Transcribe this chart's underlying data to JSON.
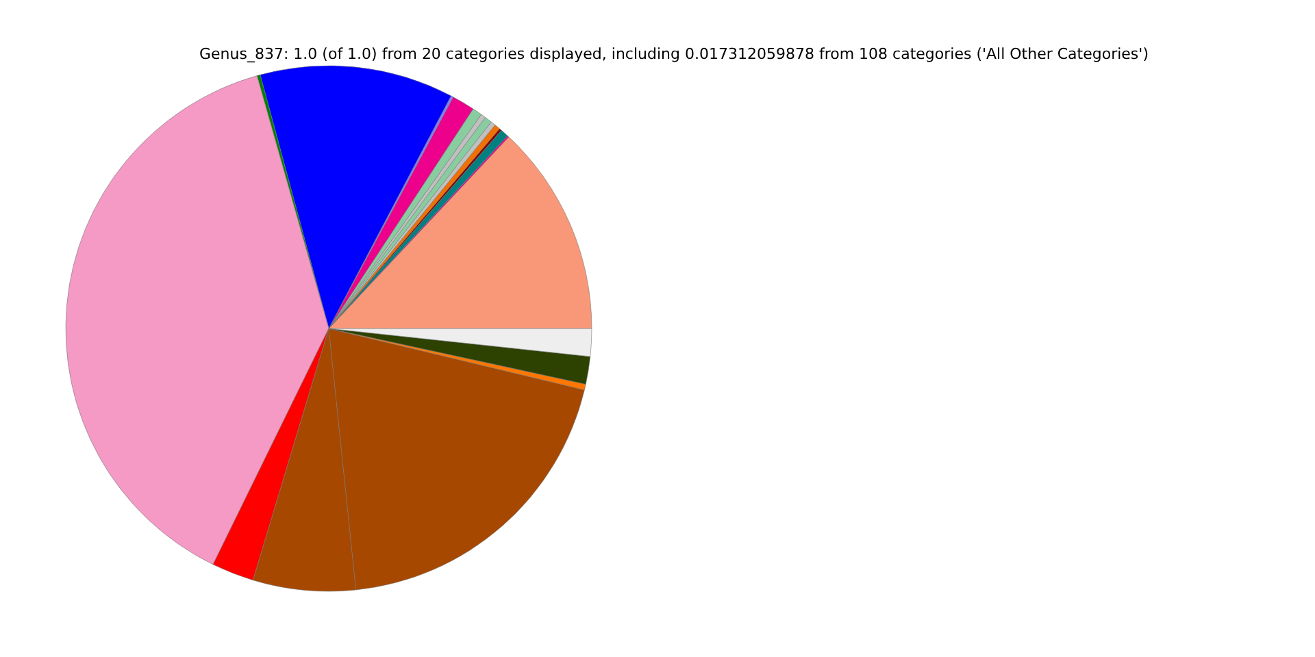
{
  "chart_data": {
    "type": "pie",
    "title": "Genus_837: 1.0 (of 1.0) from 20 categories displayed, including 0.017312059878 from 108 categories ('All Other Categories')",
    "categories": [
      null,
      null,
      null,
      null,
      null,
      null,
      null,
      null,
      null,
      null,
      null,
      null,
      null,
      null,
      null,
      null,
      null,
      null,
      null,
      null
    ],
    "values": [
      13.0,
      0.1,
      0.5,
      0.15,
      0.35,
      0.3,
      0.45,
      0.3,
      0.6,
      1.4,
      0.15,
      11.9,
      0.2,
      38.35,
      2.6,
      6.3,
      19.6,
      0.35,
      1.7,
      1.7
    ],
    "colors": [
      "#f89878",
      "#ec008c",
      "#008080",
      "#800000",
      "#f07000",
      "#c0c0c0",
      "#88cca0",
      "#c0c0c0",
      "#88cca0",
      "#ec008c",
      "#8080ff",
      "#0000ff",
      "#008000",
      "#f49ac4",
      "#ff0000",
      "#a64800",
      "#a64800",
      "#ff7700",
      "#2d4200",
      "#eeeeee"
    ],
    "legend": false
  }
}
